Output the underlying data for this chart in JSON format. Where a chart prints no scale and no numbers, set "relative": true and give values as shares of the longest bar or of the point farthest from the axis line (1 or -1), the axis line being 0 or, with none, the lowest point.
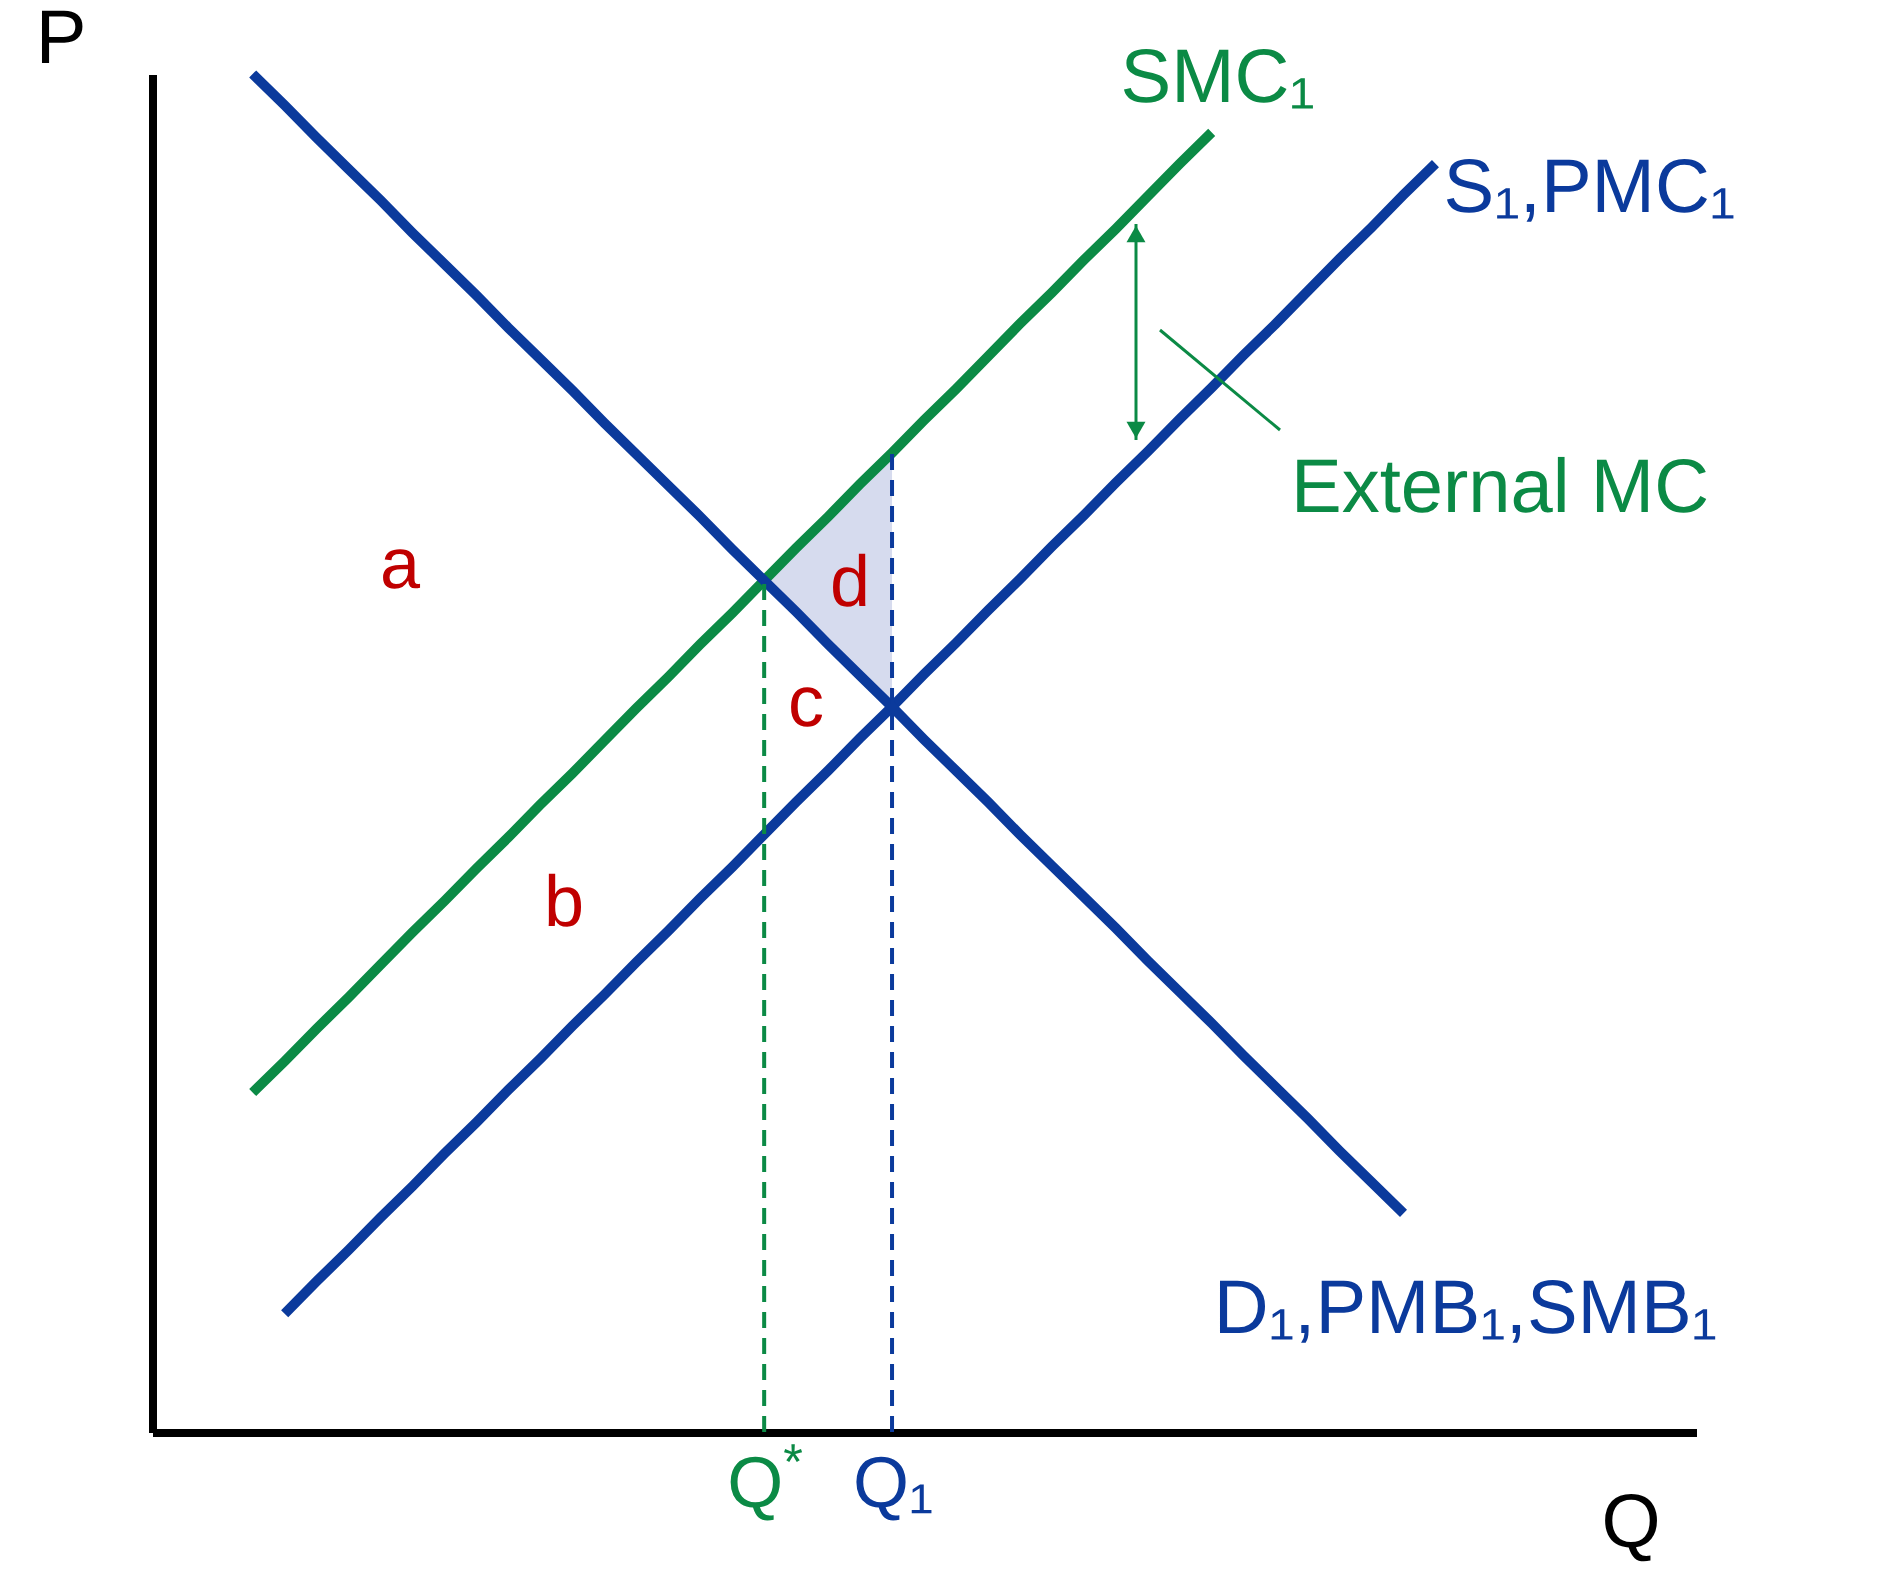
{
  "chart_data": {
    "type": "line",
    "relative": true,
    "xlabel": "Q",
    "ylabel": "P",
    "categories": [
      null,
      null,
      null,
      null,
      null,
      null,
      null,
      null,
      null,
      null,
      null,
      null,
      null,
      null,
      null,
      null,
      null,
      null,
      null,
      "Q$^{*}$",
      null,
      null,
      null,
      "Q₁",
      null,
      null,
      null,
      null,
      null,
      null,
      null,
      null,
      null,
      null,
      null,
      null,
      null,
      null,
      null,
      null,
      null,
      null,
      null,
      null,
      null,
      null,
      null,
      null,
      null
    ],
    "series": [
      {
        "name": "SMC₁",
        "color": "#0b8a45",
        "values": [
          null,
          null,
          null,
          0.25,
          0.273,
          0.297,
          0.32,
          0.344,
          0.368,
          0.391,
          0.415,
          0.438,
          0.462,
          0.485,
          0.509,
          0.533,
          0.556,
          0.58,
          0.603,
          0.627,
          0.651,
          0.674,
          0.698,
          0.721,
          0.745,
          0.768,
          0.792,
          0.816,
          0.839,
          0.863,
          0.886,
          0.91,
          0.934,
          0.957,
          null,
          null,
          null,
          null,
          null,
          null,
          null,
          null,
          null,
          null,
          null,
          null,
          null,
          null,
          null
        ]
      },
      {
        "name": "S₁,PMC₁",
        "color": "#0b3a9c",
        "values": [
          null,
          null,
          null,
          null,
          0.087,
          0.111,
          0.134,
          0.158,
          0.181,
          0.205,
          0.228,
          0.252,
          0.275,
          0.299,
          0.322,
          0.346,
          0.369,
          0.393,
          0.416,
          0.44,
          0.464,
          0.487,
          0.511,
          0.534,
          0.558,
          0.581,
          0.605,
          0.628,
          0.652,
          0.675,
          0.699,
          0.722,
          0.746,
          0.769,
          0.793,
          0.816,
          0.84,
          0.864,
          0.887,
          0.911,
          0.934,
          null,
          null,
          null,
          null,
          null,
          null,
          null,
          null
        ]
      },
      {
        "name": "D₁,PMB₁,SMB₁",
        "color": "#0b3a9c",
        "values": [
          null,
          null,
          null,
          1.0,
          0.977,
          0.953,
          0.93,
          0.907,
          0.883,
          0.86,
          0.837,
          0.813,
          0.79,
          0.767,
          0.743,
          0.72,
          0.697,
          0.674,
          0.65,
          0.627,
          0.604,
          0.58,
          0.557,
          0.534,
          0.51,
          0.487,
          0.464,
          0.44,
          0.417,
          0.394,
          0.371,
          0.347,
          0.324,
          0.301,
          0.277,
          0.254,
          0.231,
          0.207,
          0.184,
          0.161,
          null,
          null,
          null,
          null,
          null,
          null,
          null,
          null,
          null
        ]
      }
    ],
    "ref_lines": [
      {
        "axis": "x",
        "value": "Q$^{*}$",
        "color": "#0b8a45",
        "line_style": "dashed"
      },
      {
        "axis": "x",
        "value": "Q₁",
        "color": "#0b3a9c",
        "line_style": "dashed"
      }
    ],
    "annotations": [
      "a",
      "b",
      "c",
      "d",
      "External MC"
    ]
  }
}
